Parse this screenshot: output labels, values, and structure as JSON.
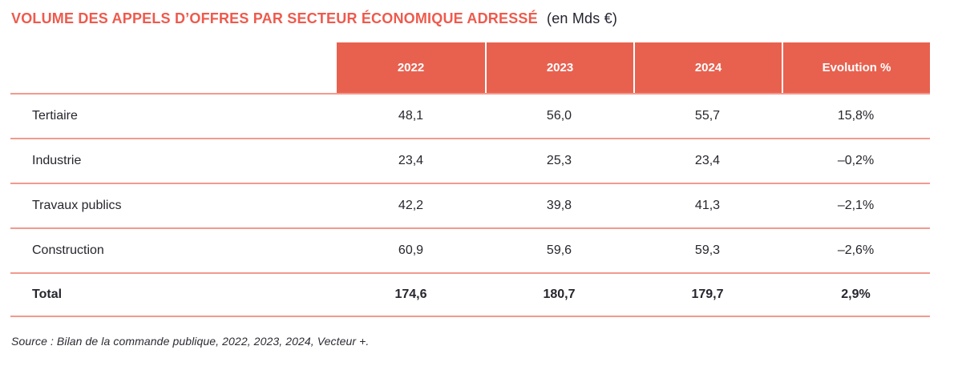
{
  "title": {
    "main": "VOLUME DES APPELS D’OFFRES PAR SECTEUR ÉCONOMIQUE ADRESSÉ",
    "unit": "(en Mds €)"
  },
  "colors": {
    "title_red": "#ee5a4d",
    "header_red": "#e8614f",
    "row_line_salmon": "#f29a8e",
    "text_dark": "#26262e"
  },
  "table": {
    "columns": [
      "2022",
      "2023",
      "2024",
      "Evolution %"
    ],
    "rows": [
      {
        "label": "Tertiaire",
        "values": [
          "48,1",
          "56,0",
          "55,7",
          "15,8%"
        ]
      },
      {
        "label": "Industrie",
        "values": [
          "23,4",
          "25,3",
          "23,4",
          "–0,2%"
        ]
      },
      {
        "label": "Travaux publics",
        "values": [
          "42,2",
          "39,8",
          "41,3",
          "–2,1%"
        ]
      },
      {
        "label": "Construction",
        "values": [
          "60,9",
          "59,6",
          "59,3",
          "–2,6%"
        ]
      },
      {
        "label": "Total",
        "values": [
          "174,6",
          "180,7",
          "179,7",
          "2,9%"
        ]
      }
    ]
  },
  "source": "Source : Bilan de la commande publique, 2022, 2023, 2024, Vecteur +.",
  "chart_data": {
    "type": "table",
    "title": "VOLUME DES APPELS D’OFFRES PAR SECTEUR ÉCONOMIQUE ADRESSÉ (en Mds €)",
    "categories": [
      "Tertiaire",
      "Industrie",
      "Travaux publics",
      "Construction",
      "Total"
    ],
    "series": [
      {
        "name": "2022",
        "values": [
          48.1,
          23.4,
          42.2,
          60.9,
          174.6
        ]
      },
      {
        "name": "2023",
        "values": [
          56.0,
          25.3,
          39.8,
          59.6,
          180.7
        ]
      },
      {
        "name": "2024",
        "values": [
          55.7,
          23.4,
          41.3,
          59.3,
          179.7
        ]
      },
      {
        "name": "Evolution %",
        "values": [
          15.8,
          -0.2,
          -2.1,
          -2.6,
          2.9
        ]
      }
    ],
    "source": "Source : Bilan de la commande publique, 2022, 2023, 2024, Vecteur +."
  }
}
